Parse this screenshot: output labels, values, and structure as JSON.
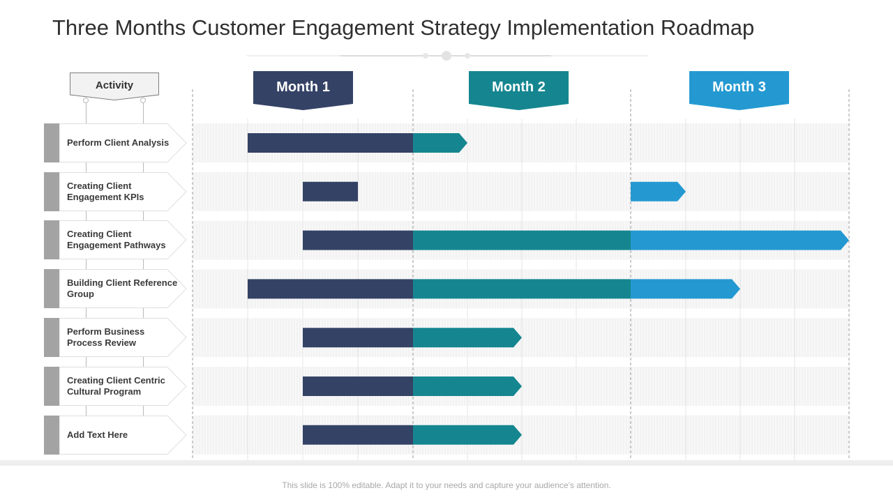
{
  "title": "Three Months Customer Engagement Strategy Implementation Roadmap",
  "activity_header": "Activity",
  "months": [
    {
      "label": "Month 1",
      "color": "#344266"
    },
    {
      "label": "Month 2",
      "color": "#158690"
    },
    {
      "label": "Month 3",
      "color": "#2499d1"
    }
  ],
  "activities": [
    {
      "label": "Perform Client Analysis"
    },
    {
      "label": "Creating Client Engagement KPIs"
    },
    {
      "label": "Creating Client Engagement Pathways"
    },
    {
      "label": "Building Client Reference Group"
    },
    {
      "label": "Perform Business Process Review"
    },
    {
      "label": "Creating Client Centric Cultural Program"
    },
    {
      "label": "Add Text Here"
    }
  ],
  "chart_data": {
    "type": "gantt",
    "time_unit": "week",
    "total_weeks": 12,
    "weeks_per_month": 4,
    "segments": [
      [
        {
          "month": 1,
          "start": 1.0,
          "end": 4.0
        },
        {
          "month": 2,
          "start": 4.0,
          "end": 5.0
        }
      ],
      [
        {
          "month": 1,
          "start": 2.0,
          "end": 3.0
        },
        {
          "month": 3,
          "start": 8.0,
          "end": 9.0
        }
      ],
      [
        {
          "month": 1,
          "start": 2.0,
          "end": 4.0
        },
        {
          "month": 2,
          "start": 4.0,
          "end": 8.0
        },
        {
          "month": 3,
          "start": 8.0,
          "end": 12.0
        }
      ],
      [
        {
          "month": 1,
          "start": 1.0,
          "end": 4.0
        },
        {
          "month": 2,
          "start": 4.0,
          "end": 8.0
        },
        {
          "month": 3,
          "start": 8.0,
          "end": 10.0
        }
      ],
      [
        {
          "month": 1,
          "start": 2.0,
          "end": 4.0
        },
        {
          "month": 2,
          "start": 4.0,
          "end": 6.0
        }
      ],
      [
        {
          "month": 1,
          "start": 2.0,
          "end": 4.0
        },
        {
          "month": 2,
          "start": 4.0,
          "end": 6.0
        }
      ],
      [
        {
          "month": 1,
          "start": 2.0,
          "end": 4.0
        },
        {
          "month": 2,
          "start": 4.0,
          "end": 6.0
        }
      ]
    ]
  },
  "footer": "This slide is 100% editable. Adapt it to your needs and capture your audience’s attention."
}
